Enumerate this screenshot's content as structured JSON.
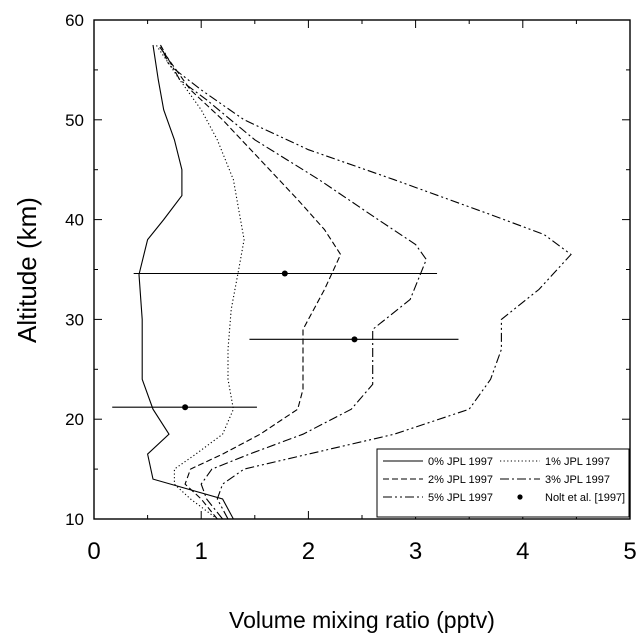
{
  "chart_data": {
    "type": "line",
    "xlabel": "Volume mixing ratio (pptv)",
    "ylabel": "Altitude (km)",
    "xlim": [
      0,
      5
    ],
    "ylim": [
      10,
      60
    ],
    "xticks": [
      "0",
      "1",
      "2",
      "3",
      "4",
      "5"
    ],
    "yticks": [
      "10",
      "20",
      "30",
      "40",
      "50",
      "60"
    ],
    "grid": false,
    "legend_position": "bottom-right",
    "series": [
      {
        "name": "0% JPL 1997",
        "style": "solid",
        "points": [
          [
            1.3,
            10
          ],
          [
            1.2,
            12
          ],
          [
            0.55,
            14
          ],
          [
            0.5,
            16.5
          ],
          [
            0.7,
            18.5
          ],
          [
            0.55,
            21
          ],
          [
            0.45,
            24
          ],
          [
            0.45,
            27
          ],
          [
            0.45,
            30
          ],
          [
            0.42,
            34.5
          ],
          [
            0.5,
            38
          ],
          [
            0.65,
            40
          ],
          [
            0.82,
            42.4
          ],
          [
            0.82,
            45
          ],
          [
            0.75,
            48
          ],
          [
            0.65,
            51
          ],
          [
            0.6,
            54
          ],
          [
            0.55,
            57.5
          ]
        ]
      },
      {
        "name": "1% JPL 1997",
        "style": "dotted",
        "points": [
          [
            1.15,
            10
          ],
          [
            0.9,
            12
          ],
          [
            0.75,
            13.5
          ],
          [
            0.75,
            15
          ],
          [
            0.95,
            16.5
          ],
          [
            1.2,
            18.5
          ],
          [
            1.3,
            21
          ],
          [
            1.25,
            24
          ],
          [
            1.25,
            27
          ],
          [
            1.28,
            31
          ],
          [
            1.35,
            35
          ],
          [
            1.4,
            38
          ],
          [
            1.35,
            41
          ],
          [
            1.3,
            44
          ],
          [
            1.15,
            48
          ],
          [
            1.0,
            51
          ],
          [
            0.8,
            54
          ],
          [
            0.58,
            57.5
          ]
        ]
      },
      {
        "name": "2% JPL 1997",
        "style": "dashed",
        "points": [
          [
            1.15,
            10
          ],
          [
            1.0,
            12
          ],
          [
            0.85,
            13.5
          ],
          [
            0.9,
            15
          ],
          [
            1.2,
            16.5
          ],
          [
            1.55,
            18.5
          ],
          [
            1.9,
            21
          ],
          [
            1.95,
            23
          ],
          [
            1.95,
            25
          ],
          [
            1.95,
            29
          ],
          [
            2.15,
            33
          ],
          [
            2.3,
            36.5
          ],
          [
            2.15,
            39
          ],
          [
            1.9,
            42
          ],
          [
            1.55,
            46
          ],
          [
            1.2,
            50
          ],
          [
            0.9,
            53
          ],
          [
            0.6,
            57.5
          ]
        ]
      },
      {
        "name": "3% JPL 1997",
        "style": "dashdot",
        "points": [
          [
            1.2,
            10
          ],
          [
            1.05,
            12
          ],
          [
            1.0,
            13.5
          ],
          [
            1.1,
            15
          ],
          [
            1.45,
            16.5
          ],
          [
            1.95,
            18.5
          ],
          [
            2.4,
            21
          ],
          [
            2.6,
            23.5
          ],
          [
            2.6,
            26
          ],
          [
            2.6,
            29
          ],
          [
            2.95,
            32
          ],
          [
            3.1,
            36
          ],
          [
            3.0,
            37.5
          ],
          [
            2.65,
            40
          ],
          [
            2.1,
            44
          ],
          [
            1.5,
            48
          ],
          [
            1.05,
            52
          ],
          [
            0.8,
            54
          ],
          [
            0.62,
            57.5
          ]
        ]
      },
      {
        "name": "5% JPL 1997",
        "style": "dashdotdot",
        "points": [
          [
            1.25,
            10
          ],
          [
            1.15,
            12
          ],
          [
            1.2,
            13.5
          ],
          [
            1.4,
            15
          ],
          [
            2.0,
            16.5
          ],
          [
            2.8,
            18.5
          ],
          [
            3.5,
            21
          ],
          [
            3.7,
            24
          ],
          [
            3.8,
            27
          ],
          [
            3.8,
            30
          ],
          [
            4.15,
            33
          ],
          [
            4.45,
            36.5
          ],
          [
            4.2,
            38.5
          ],
          [
            3.7,
            40.5
          ],
          [
            2.8,
            44
          ],
          [
            2.0,
            47
          ],
          [
            1.4,
            50
          ],
          [
            1.0,
            53
          ],
          [
            0.7,
            55.5
          ],
          [
            0.62,
            57.5
          ]
        ]
      }
    ],
    "observations": {
      "name": "Nolt et al. [1997]",
      "points": [
        {
          "x": 0.85,
          "y": 21.2,
          "x_low": 0.17,
          "x_high": 1.52
        },
        {
          "x": 2.43,
          "y": 28.0,
          "x_low": 1.45,
          "x_high": 3.4
        },
        {
          "x": 1.78,
          "y": 34.6,
          "x_low": 0.37,
          "x_high": 3.2
        }
      ]
    }
  }
}
